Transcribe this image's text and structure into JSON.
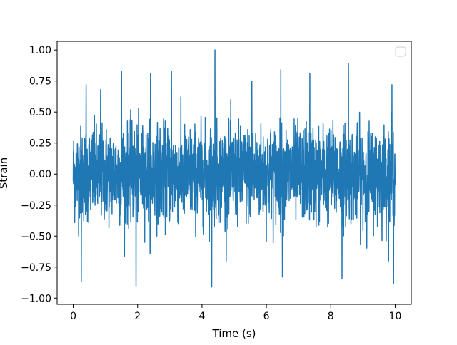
{
  "chart_data": {
    "type": "line",
    "title": "",
    "xlabel": "Time (s)",
    "ylabel": "Strain",
    "xlim": [
      -0.5,
      10.5
    ],
    "ylim": [
      -1.05,
      1.07
    ],
    "xticks": [
      0,
      2,
      4,
      6,
      8,
      10
    ],
    "xtick_labels": [
      "0",
      "2",
      "4",
      "6",
      "8",
      "10"
    ],
    "yticks": [
      -1.0,
      -0.75,
      -0.5,
      -0.25,
      0.0,
      0.25,
      0.5,
      0.75,
      1.0
    ],
    "ytick_labels": [
      "−1.00",
      "−0.75",
      "−0.50",
      "−0.25",
      "0.00",
      "0.25",
      "0.50",
      "0.75",
      "1.00"
    ],
    "grid": false,
    "legend": "top-right, empty",
    "series": [
      {
        "color": "#1f77b4",
        "x_range": [
          0,
          10
        ],
        "samples": "dense noise signal, approx. 0.3 amplitude envelope with peaks reaching about ±0.9 to 1.0",
        "notable_peaks": [
          {
            "x": 0.4,
            "y": 0.72
          },
          {
            "x": 0.85,
            "y": 0.68
          },
          {
            "x": 1.5,
            "y": 0.83
          },
          {
            "x": 2.4,
            "y": 0.81
          },
          {
            "x": 3.05,
            "y": 0.83
          },
          {
            "x": 4.4,
            "y": 1.0
          },
          {
            "x": 5.55,
            "y": 0.75
          },
          {
            "x": 6.45,
            "y": 0.84
          },
          {
            "x": 7.35,
            "y": 0.81
          },
          {
            "x": 8.55,
            "y": 0.89
          },
          {
            "x": 9.9,
            "y": 0.72
          }
        ],
        "notable_troughs": [
          {
            "x": 0.25,
            "y": -0.87
          },
          {
            "x": 1.95,
            "y": -0.9
          },
          {
            "x": 4.3,
            "y": -0.91
          },
          {
            "x": 6.5,
            "y": -0.83
          },
          {
            "x": 8.35,
            "y": -0.84
          },
          {
            "x": 9.95,
            "y": -0.88
          }
        ]
      }
    ]
  },
  "colors": {
    "series": "#1f77b4",
    "axes": "#000000",
    "background": "#ffffff",
    "legend_border": "#cccccc"
  }
}
